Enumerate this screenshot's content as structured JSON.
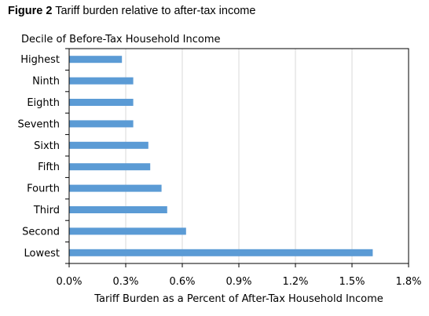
{
  "figure": {
    "label": "Figure 2",
    "caption": "Tariff burden relative to after-tax income"
  },
  "chart_data": {
    "type": "bar",
    "orientation": "horizontal",
    "categories": [
      "Highest",
      "Ninth",
      "Eighth",
      "Seventh",
      "Sixth",
      "Fifth",
      "Fourth",
      "Third",
      "Second",
      "Lowest"
    ],
    "values": [
      0.28,
      0.34,
      0.34,
      0.34,
      0.42,
      0.43,
      0.49,
      0.52,
      0.62,
      1.61
    ],
    "ylabel": "Decile of Before-Tax Household Income",
    "xlabel": "Tariff Burden as a Percent of After-Tax Household Income",
    "xlim": [
      0,
      1.8
    ],
    "xticks": [
      0,
      0.3,
      0.6,
      0.9,
      1.2,
      1.5,
      1.8
    ],
    "xtick_labels": [
      "0.0%",
      "0.3%",
      "0.6%",
      "0.9%",
      "1.2%",
      "1.5%",
      "1.8%"
    ],
    "grid": "vertical",
    "bar_color": "#5b9bd5",
    "grid_color": "#d9d9d9",
    "axis_color": "#000000"
  }
}
